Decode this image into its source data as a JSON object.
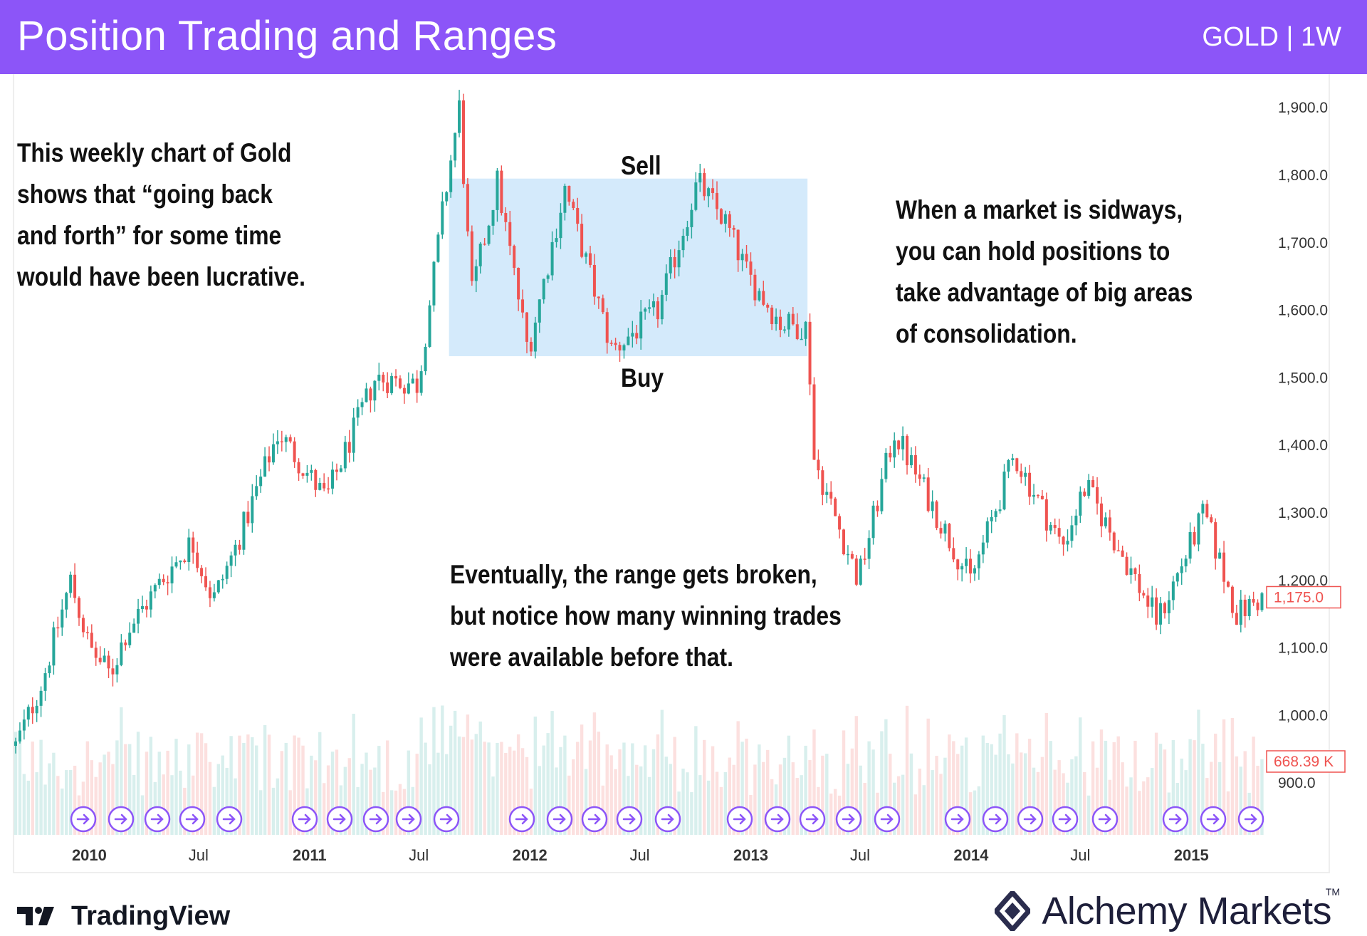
{
  "header": {
    "title": "Position Trading and Ranges",
    "symbol": "GOLD | 1W"
  },
  "annotations": {
    "left_lines": [
      "This weekly chart of Gold",
      "shows that “going back",
      "and forth” for some time",
      "would have been lucrative."
    ],
    "right_lines": [
      "When a market is sidways,",
      "you can hold positions to",
      "take advantage of big areas",
      "of consolidation."
    ],
    "bottom_lines": [
      "Eventually, the range gets broken,",
      "but notice how many winning trades",
      "were available before that."
    ],
    "sell_label": "Sell",
    "buy_label": "Buy"
  },
  "footer": {
    "tradingview": "TradingView",
    "alchemy": "Alchemy Markets",
    "tm": "TM"
  },
  "colors": {
    "header": "#8c55f8",
    "up": "#26a69a",
    "down": "#ef5350",
    "range_box": "#cfe8fb",
    "event_icon": "#8c55f8"
  },
  "chart_data": {
    "type": "candlestick",
    "timeframe": "1W",
    "symbol": "GOLD",
    "ylim": [
      820,
      1935
    ],
    "y_ticks": [
      900,
      1000,
      1100,
      1200,
      1300,
      1400,
      1500,
      1600,
      1700,
      1800,
      1900
    ],
    "y_tick_labels": [
      "900.0",
      "1,000.0",
      "1,100.0",
      "1,200.0",
      "1,300.0",
      "1,400.0",
      "1,500.0",
      "1,600.0",
      "1,700.0",
      "1,800.0",
      "1,900.0"
    ],
    "x_range": [
      "2009-09-01",
      "2015-05-01"
    ],
    "x_ticks": [
      {
        "date": "2010-01-01",
        "label": "2010"
      },
      {
        "date": "2010-07-01",
        "label": "Jul"
      },
      {
        "date": "2011-01-01",
        "label": "2011"
      },
      {
        "date": "2011-07-01",
        "label": "Jul"
      },
      {
        "date": "2012-01-01",
        "label": "2012"
      },
      {
        "date": "2012-07-01",
        "label": "Jul"
      },
      {
        "date": "2013-01-01",
        "label": "2013"
      },
      {
        "date": "2013-07-01",
        "label": "Jul"
      },
      {
        "date": "2014-01-01",
        "label": "2014"
      },
      {
        "date": "2014-07-01",
        "label": "Jul"
      },
      {
        "date": "2015-01-01",
        "label": "2015"
      }
    ],
    "last_price": 1175.0,
    "last_price_label": "1,175.0",
    "last_volume_label": "668.39 K",
    "range_box": {
      "from": "2011-08-20",
      "to": "2013-04-05",
      "low": 1532,
      "high": 1795
    },
    "price_path": [
      {
        "date": "2009-09-01",
        "close": 955
      },
      {
        "date": "2009-10-15",
        "close": 1050
      },
      {
        "date": "2009-12-01",
        "close": 1200
      },
      {
        "date": "2010-01-01",
        "close": 1100
      },
      {
        "date": "2010-02-05",
        "close": 1060
      },
      {
        "date": "2010-03-01",
        "close": 1120
      },
      {
        "date": "2010-05-01",
        "close": 1200
      },
      {
        "date": "2010-06-20",
        "close": 1258
      },
      {
        "date": "2010-07-25",
        "close": 1170
      },
      {
        "date": "2010-09-01",
        "close": 1250
      },
      {
        "date": "2010-11-10",
        "close": 1420
      },
      {
        "date": "2011-01-28",
        "close": 1320
      },
      {
        "date": "2011-04-20",
        "close": 1500
      },
      {
        "date": "2011-06-30",
        "close": 1490
      },
      {
        "date": "2011-08-10",
        "close": 1750
      },
      {
        "date": "2011-09-06",
        "close": 1900
      },
      {
        "date": "2011-09-26",
        "close": 1620
      },
      {
        "date": "2011-11-08",
        "close": 1790
      },
      {
        "date": "2011-12-29",
        "close": 1540
      },
      {
        "date": "2012-02-28",
        "close": 1780
      },
      {
        "date": "2012-05-16",
        "close": 1540
      },
      {
        "date": "2012-08-01",
        "close": 1600
      },
      {
        "date": "2012-10-05",
        "close": 1790
      },
      {
        "date": "2012-11-20",
        "close": 1730
      },
      {
        "date": "2012-12-28",
        "close": 1650
      },
      {
        "date": "2013-02-20",
        "close": 1580
      },
      {
        "date": "2013-04-05",
        "close": 1575
      },
      {
        "date": "2013-04-16",
        "close": 1380
      },
      {
        "date": "2013-06-28",
        "close": 1200
      },
      {
        "date": "2013-08-27",
        "close": 1420
      },
      {
        "date": "2013-12-31",
        "close": 1200
      },
      {
        "date": "2014-03-14",
        "close": 1385
      },
      {
        "date": "2014-06-01",
        "close": 1250
      },
      {
        "date": "2014-07-10",
        "close": 1340
      },
      {
        "date": "2014-11-06",
        "close": 1140
      },
      {
        "date": "2015-01-22",
        "close": 1300
      },
      {
        "date": "2015-03-17",
        "close": 1150
      },
      {
        "date": "2015-05-01",
        "close": 1175
      }
    ],
    "volume_range": [
      0,
      1200
    ]
  }
}
